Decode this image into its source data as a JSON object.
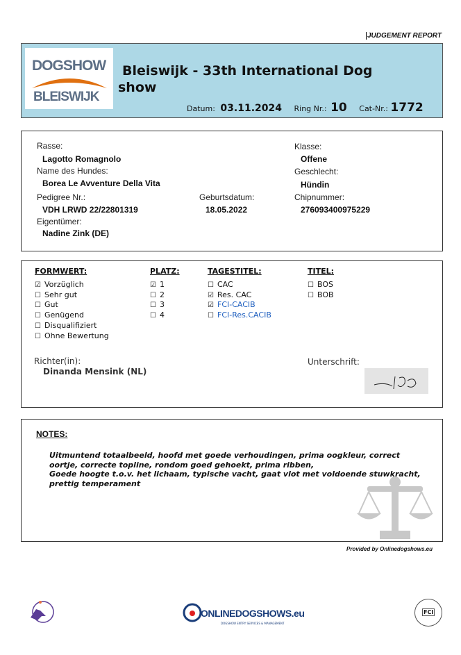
{
  "report_label": "JUDGEMENT REPORT",
  "logo_text": {
    "top": "DOGSHOW",
    "bottom": "BLEISWIJK"
  },
  "header": {
    "title_line1": "Bleiswijk - 33th International Dog",
    "title_line2": "show",
    "datum_label": "Datum:",
    "datum": "03.11.2024",
    "ring_label": "Ring Nr.:",
    "ring": "10",
    "cat_label": "Cat-Nr.:",
    "cat": "1772",
    "bg_color": "#add8e6"
  },
  "dog": {
    "rasse_label": "Rasse:",
    "rasse": "Lagotto Romagnolo",
    "name_label": "Name des Hundes:",
    "name": "Borea Le Avventure Della Vita",
    "pedigree_label": "Pedigree Nr.:",
    "pedigree": "VDH LRWD 22/22801319",
    "geburt_label": "Geburtsdatum:",
    "geburt": "18.05.2022",
    "eigentuemer_label": "Eigentümer:",
    "eigentuemer": "Nadine Zink (DE)",
    "klasse_label": "Klasse:",
    "klasse": "Offene",
    "geschlecht_label": "Geschlecht:",
    "geschlecht": "Hündin",
    "chip_label": "Chipnummer:",
    "chip": "276093400975229"
  },
  "judging": {
    "formwert": {
      "title": "FORMWERT:",
      "items": [
        {
          "label": "Vorzüglich",
          "checked": true
        },
        {
          "label": "Sehr gut",
          "checked": false
        },
        {
          "label": "Gut",
          "checked": false
        },
        {
          "label": "Genügend",
          "checked": false
        },
        {
          "label": "Disqualifiziert",
          "checked": false
        },
        {
          "label": "Ohne Bewertung",
          "checked": false
        }
      ]
    },
    "platz": {
      "title": "PLATZ:",
      "items": [
        {
          "label": "1",
          "checked": true
        },
        {
          "label": "2",
          "checked": false
        },
        {
          "label": "3",
          "checked": false
        },
        {
          "label": "4",
          "checked": false
        }
      ]
    },
    "tagestitel": {
      "title": "TAGESTITEL:",
      "items": [
        {
          "label": "CAC",
          "checked": false
        },
        {
          "label": "Res. CAC",
          "checked": true
        },
        {
          "prefix": "FCI",
          "label": "-CACIB",
          "checked": true
        },
        {
          "prefix": "FCI",
          "label": "-Res.CACIB",
          "checked": false
        }
      ]
    },
    "titel": {
      "title": "TITEL:",
      "items": [
        {
          "label": "BOS",
          "checked": false
        },
        {
          "label": "BOB",
          "checked": false
        }
      ]
    },
    "richter_label": "Richter(in):",
    "richter": "Dinanda Mensink (NL)",
    "unterschrift_label": "Unterschrift:"
  },
  "notes": {
    "title": "NOTES:",
    "lines": [
      "Uitmuntend totaalbeeld, hoofd met goede verhoudingen, prima oogkleur, correct",
      "oortje, correcte topline, rondom goed gehoekt, prima ribben,",
      "Goede hoogte t.o.v. het lichaam, typische vacht, gaat vlot met voldoende stuwkracht,",
      "prettig temperament"
    ]
  },
  "provided_by": "Provided by Onlinedogshows.eu",
  "footer": {
    "ods_logo": "ONLINEDOGSHOWS.eu",
    "ods_tagline": "DOGSHOW ENTRY SERVICES & MANAGEMENT",
    "fci": "FCI"
  }
}
